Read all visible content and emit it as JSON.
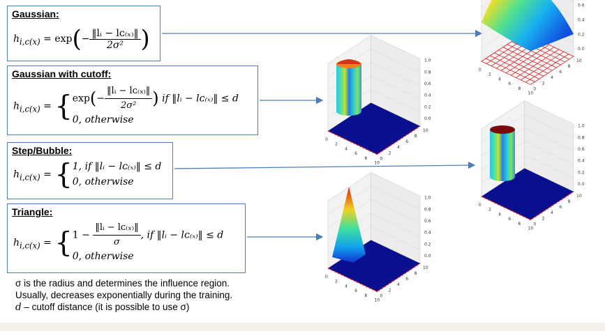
{
  "panels": [
    {
      "title": "Gaussian:",
      "lhs": "h",
      "lhs_sub": "i,c(x)",
      "fn": "exp",
      "num": "‖lᵢ − lᴄ₍ₓ₎‖",
      "den": "2σ²"
    },
    {
      "title": "Gaussian with cutoff:",
      "lhs": "h",
      "lhs_sub": "i,c(x)",
      "fn": "exp",
      "num": "‖lᵢ − lᴄ₍ₓ₎‖",
      "den": "2σ²",
      "condition": "if ‖lᵢ − lᴄ₍ₓ₎‖ ≤ d",
      "otherwise": "0, otherwise"
    },
    {
      "title": "Step/Bubble:",
      "lhs": "h",
      "lhs_sub": "i,c(x)",
      "case1": "1, if ‖lᵢ − lᴄ₍ₓ₎‖ ≤ d",
      "otherwise": "0, otherwise"
    },
    {
      "title": "Triangle:",
      "lhs": "h",
      "lhs_sub": "i,c(x)",
      "one": "1 −",
      "num": "‖lᵢ − lᴄ₍ₓ₎‖",
      "den": "σ",
      "condition": ", if ‖lᵢ − lᴄ₍ₓ₎‖ ≤ d",
      "otherwise": "0, otherwise"
    }
  ],
  "notes": {
    "line1": "σ is the radius and determines the influence region.",
    "line2": "Usually, decreases exponentially during the training.",
    "line3_var": "d",
    "line3": " – cutoff distance (it is possible to use σ)"
  },
  "plots": [
    {
      "name": "gaussian",
      "z_ticks": [
        "0.0",
        "0.2",
        "0.4",
        "0.6",
        "0.8"
      ],
      "x_ticks": [
        "0",
        "2",
        "4",
        "6",
        "8",
        "10"
      ],
      "y_ticks": [
        "0",
        "2",
        "4",
        "6",
        "8",
        "10"
      ]
    },
    {
      "name": "gaussian-cutoff",
      "z_ticks": [
        "0.0",
        "0.2",
        "0.4",
        "0.6",
        "0.8",
        "1.0"
      ],
      "x_ticks": [
        "0",
        "2",
        "4",
        "6",
        "8",
        "10"
      ],
      "y_ticks": [
        "0",
        "2",
        "4",
        "6",
        "8",
        "10"
      ]
    },
    {
      "name": "bubble",
      "z_ticks": [
        "0.0",
        "0.2",
        "0.4",
        "0.6",
        "0.8",
        "1.0"
      ],
      "x_ticks": [
        "0",
        "2",
        "4",
        "6",
        "8",
        "10"
      ],
      "y_ticks": [
        "0",
        "2",
        "4",
        "6",
        "8",
        "10"
      ]
    },
    {
      "name": "triangle",
      "z_ticks": [
        "0.0",
        "0.2",
        "0.4",
        "0.6",
        "0.8",
        "1.0"
      ],
      "x_ticks": [
        "0",
        "2",
        "4",
        "6",
        "8",
        "10"
      ],
      "y_ticks": [
        "0",
        "2",
        "4",
        "6",
        "8",
        "10"
      ]
    }
  ],
  "colors": {
    "box_border": "#4a7ebb",
    "arrow": "#4a7ebb",
    "floor": "#08108f",
    "grid_red": "#d62020"
  }
}
